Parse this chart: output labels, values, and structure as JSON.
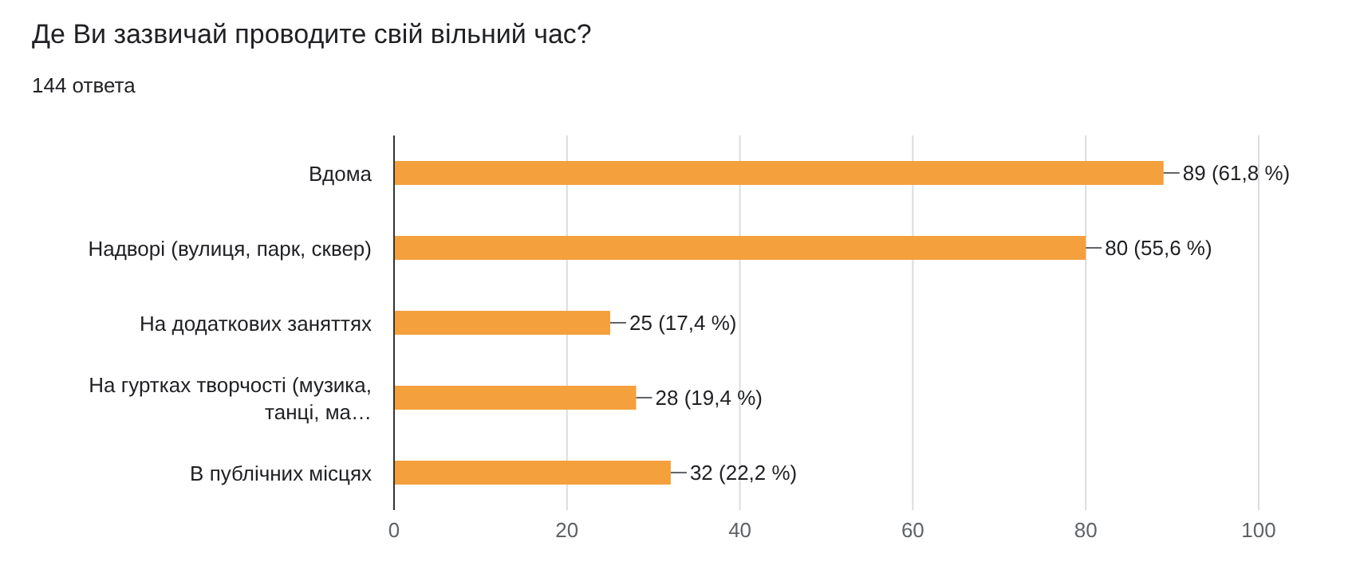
{
  "chart_data": {
    "type": "bar",
    "orientation": "horizontal",
    "title": "Де Ви зазвичай проводите свій вільний час?",
    "subtitle": "144 ответа",
    "categories": [
      "Вдома",
      "Надворі (вулиця, парк, сквер)",
      "На додаткових заняттях",
      "На гуртках творчості (музика, танці, ма…",
      "В публічних місцях"
    ],
    "values": [
      89,
      80,
      25,
      28,
      32
    ],
    "value_labels": [
      "89 (61,8 %)",
      "80 (55,6 %)",
      "25 (17,4 %)",
      "28 (19,4 %)",
      "32 (22,2 %)"
    ],
    "color": "#f4a03c",
    "xlim": [
      0,
      100
    ],
    "xticks": [
      0,
      20,
      40,
      60,
      80,
      100
    ],
    "grid": "x"
  }
}
